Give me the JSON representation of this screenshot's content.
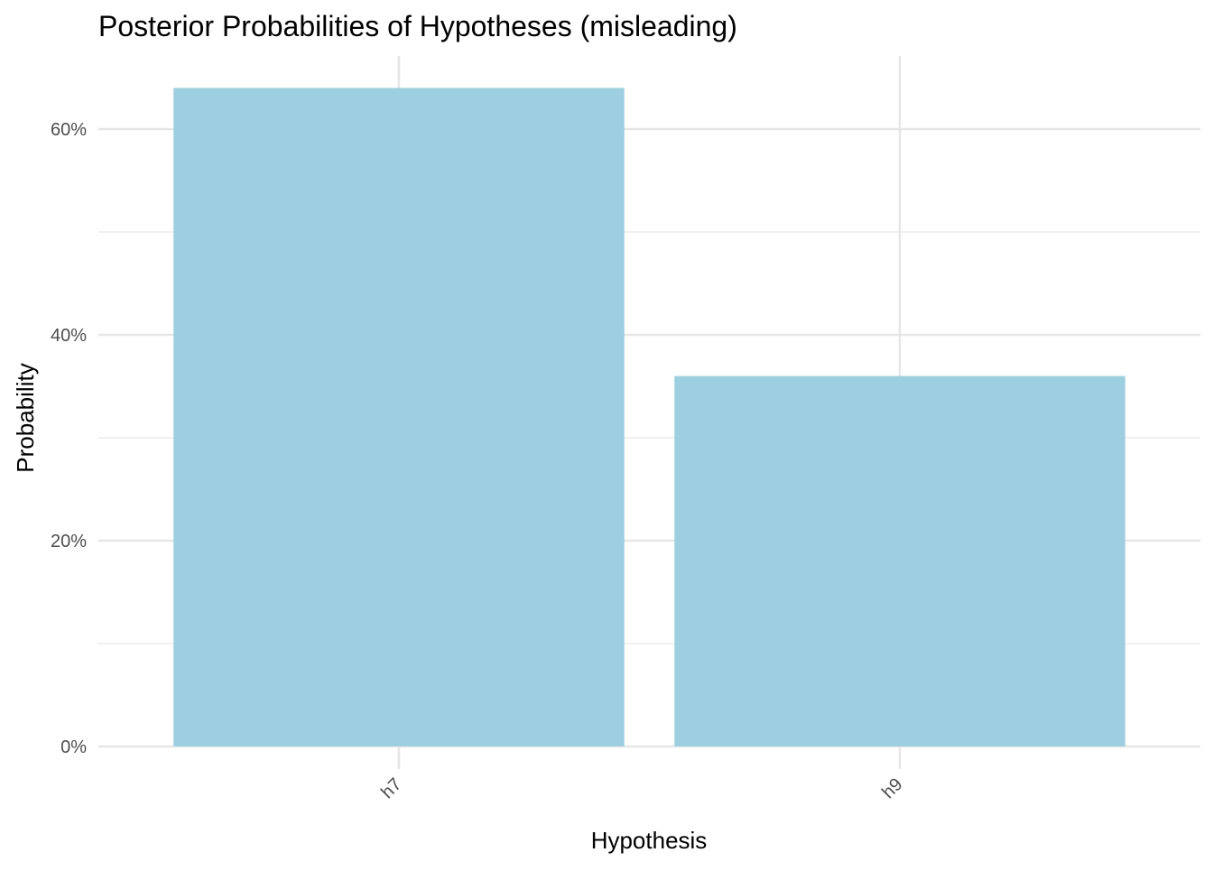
{
  "chart_data": {
    "type": "bar",
    "title": "Posterior Probabilities of Hypotheses (misleading)",
    "xlabel": "Hypothesis",
    "ylabel": "Probability",
    "categories": [
      "h7",
      "h9"
    ],
    "values": [
      0.64,
      0.36
    ],
    "ylim": [
      0,
      0.6667
    ],
    "yticks": [
      0,
      0.2,
      0.4,
      0.6
    ],
    "ytick_labels": [
      "0%",
      "20%",
      "40%",
      "60%"
    ],
    "minor_yticks": [
      0.1,
      0.3,
      0.5
    ],
    "grid": true,
    "legend": "none",
    "bar_color": "#9ECFE0",
    "grid_color": "#E6E6E6",
    "xtick_rotation_deg": 45
  }
}
